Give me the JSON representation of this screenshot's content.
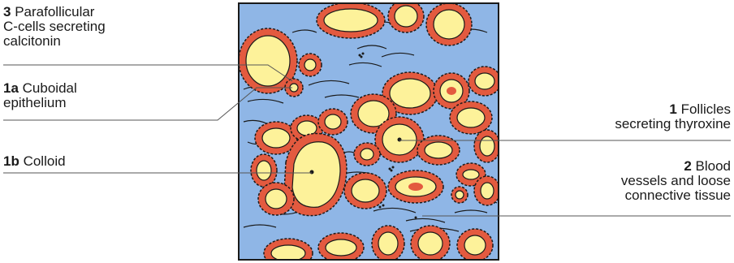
{
  "labels": {
    "l3": {
      "num": "3",
      "text": "Parafollicular",
      "line2": "C-cells secreting",
      "line3": "calcitonin"
    },
    "l1a": {
      "num": "1a",
      "text": "Cuboidal",
      "line2": "epithelium"
    },
    "l1b": {
      "num": "1b",
      "text": "Colloid"
    },
    "l1": {
      "num": "1",
      "text": "Follicles",
      "line2": "secreting thyroxine"
    },
    "l2": {
      "num": "2",
      "text": "Blood",
      "line2": "vessels and loose",
      "line3": "connective tissue"
    }
  },
  "colors": {
    "stroma": "#8fb6e6",
    "colloid": "#fdf29a",
    "epithelium": "#e35a3f",
    "outline": "#1a1a1a"
  }
}
